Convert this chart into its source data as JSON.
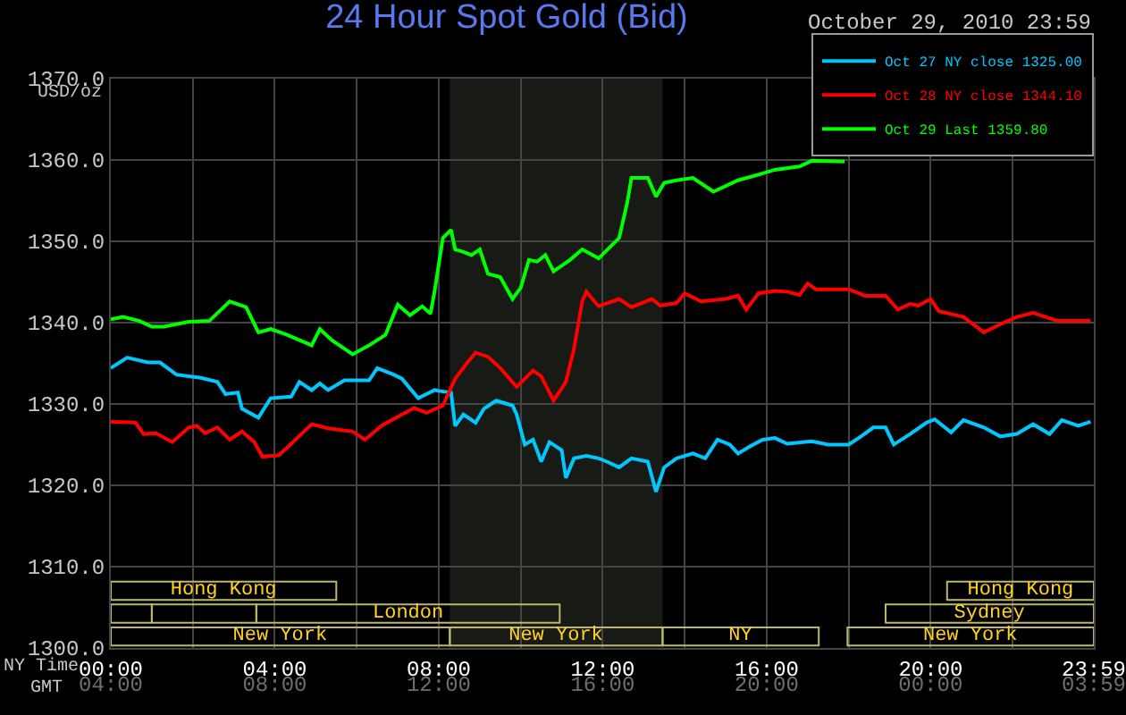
{
  "chart_data": [
    {
      "type": "line",
      "title": "24 Hour Spot Gold (Bid)",
      "subtitle": "October 29, 2010 23:59",
      "ylabel": "USD/oz",
      "xlabel": "NY Time",
      "x2label": "GMT",
      "series": [
        {
          "name": "Oct 27 NY close 1325.00",
          "color": "#00c8ff",
          "x": [
            0,
            0.4,
            0.9,
            1.2,
            1.6,
            2.2,
            2.6,
            2.8,
            3.1,
            3.2,
            3.6,
            3.9,
            4.4,
            4.6,
            4.9,
            5.1,
            5.3,
            5.7,
            6.3,
            6.5,
            6.9,
            7.1,
            7.5,
            7.9,
            8.0,
            8.3,
            8.4,
            8.6,
            8.9,
            9.1,
            9.4,
            9.8,
            9.9,
            10.1,
            10.3,
            10.5,
            10.7,
            11.0,
            11.1,
            11.3,
            11.6,
            11.9,
            12.1,
            12.4,
            12.7,
            13.1,
            13.3,
            13.5,
            13.8,
            14.2,
            14.5,
            14.8,
            15.1,
            15.3,
            15.6,
            15.9,
            16.2,
            16.5,
            17.1,
            17.5,
            18.0,
            18.3,
            18.6,
            18.9,
            19.1,
            19.5,
            19.9,
            20.1,
            20.5,
            20.8,
            21.3,
            21.7,
            22.1,
            22.5,
            22.9,
            23.2,
            23.6,
            23.9
          ],
          "values": [
            1334.4,
            1335.7,
            1335.1,
            1335.1,
            1333.6,
            1333.2,
            1332.7,
            1331.2,
            1331.4,
            1329.4,
            1328.3,
            1330.7,
            1330.9,
            1332.7,
            1331.7,
            1332.5,
            1331.7,
            1332.9,
            1332.9,
            1334.4,
            1333.6,
            1333.1,
            1330.7,
            1331.7,
            1331.6,
            1331.4,
            1327.3,
            1328.7,
            1327.7,
            1329.4,
            1330.4,
            1329.8,
            1328.7,
            1325.0,
            1325.6,
            1322.9,
            1325.3,
            1324.3,
            1320.9,
            1323.3,
            1323.6,
            1323.3,
            1322.9,
            1322.2,
            1323.3,
            1322.9,
            1319.2,
            1322.2,
            1323.3,
            1323.9,
            1323.3,
            1325.6,
            1325.0,
            1323.9,
            1324.8,
            1325.6,
            1325.8,
            1325.1,
            1325.4,
            1325.0,
            1325.0,
            1326.0,
            1327.1,
            1327.1,
            1325.0,
            1326.3,
            1327.7,
            1328.1,
            1326.5,
            1328.0,
            1327.1,
            1326.0,
            1326.3,
            1327.5,
            1326.3,
            1328.0,
            1327.3,
            1327.8
          ]
        },
        {
          "name": "Oct 28 NY close 1344.10",
          "color": "#ff0000",
          "x": [
            0,
            0.6,
            0.8,
            1.1,
            1.5,
            1.9,
            2.1,
            2.3,
            2.6,
            2.9,
            3.2,
            3.5,
            3.7,
            4.1,
            4.4,
            4.9,
            5.3,
            5.9,
            6.2,
            6.6,
            7.1,
            7.4,
            7.7,
            8.1,
            8.4,
            8.7,
            8.9,
            9.2,
            9.5,
            9.9,
            10.3,
            10.5,
            10.8,
            11.1,
            11.3,
            11.5,
            11.6,
            11.9,
            12.4,
            12.7,
            13.2,
            13.4,
            13.8,
            14.0,
            14.4,
            15.0,
            15.3,
            15.5,
            15.8,
            16.2,
            16.5,
            16.8,
            17.0,
            17.2,
            18.0,
            18.4,
            18.9,
            19.2,
            19.5,
            19.7,
            20.0,
            20.2,
            20.8,
            21.3,
            21.7,
            22.1,
            22.5,
            23.1,
            23.9
          ],
          "values": [
            1327.8,
            1327.7,
            1326.3,
            1326.4,
            1325.3,
            1327.1,
            1327.3,
            1326.4,
            1327.1,
            1325.6,
            1326.6,
            1325.3,
            1323.5,
            1323.7,
            1325.1,
            1327.5,
            1327.0,
            1326.6,
            1325.6,
            1327.3,
            1328.7,
            1329.5,
            1328.9,
            1329.8,
            1333.1,
            1335.1,
            1336.3,
            1335.8,
            1334.4,
            1332.1,
            1334.1,
            1333.4,
            1330.4,
            1332.7,
            1336.8,
            1342.6,
            1343.8,
            1342.0,
            1342.9,
            1341.9,
            1342.9,
            1342.1,
            1342.4,
            1343.6,
            1342.6,
            1342.9,
            1343.3,
            1341.6,
            1343.6,
            1343.9,
            1343.8,
            1343.4,
            1344.8,
            1344.1,
            1344.1,
            1343.3,
            1343.3,
            1341.6,
            1342.3,
            1342.1,
            1342.9,
            1341.4,
            1340.7,
            1338.8,
            1339.8,
            1340.7,
            1341.2,
            1340.2,
            1340.2
          ]
        },
        {
          "name": "Oct 29 Last 1359.80",
          "color": "#00ff00",
          "x": [
            0,
            0.3,
            0.7,
            1.0,
            1.3,
            1.9,
            2.4,
            2.9,
            3.3,
            3.6,
            3.9,
            4.3,
            4.9,
            5.1,
            5.4,
            5.9,
            6.3,
            6.7,
            7.0,
            7.3,
            7.6,
            7.8,
            7.9,
            8.1,
            8.3,
            8.4,
            8.6,
            8.8,
            9.0,
            9.2,
            9.5,
            9.8,
            10.0,
            10.2,
            10.4,
            10.6,
            10.8,
            11.2,
            11.5,
            11.9,
            12.2,
            12.4,
            12.6,
            12.7,
            13.1,
            13.3,
            13.5,
            13.8,
            14.2,
            14.7,
            15.3,
            15.8,
            16.2,
            16.8,
            17.1,
            17.9
          ],
          "values": [
            1340.4,
            1340.7,
            1340.2,
            1339.5,
            1339.5,
            1340.1,
            1340.2,
            1342.6,
            1341.9,
            1338.8,
            1339.2,
            1338.5,
            1337.2,
            1339.2,
            1337.8,
            1336.1,
            1337.2,
            1338.5,
            1342.2,
            1340.9,
            1342.0,
            1341.1,
            1343.9,
            1350.4,
            1351.4,
            1349.0,
            1348.7,
            1348.3,
            1349.0,
            1346.0,
            1345.6,
            1342.9,
            1344.3,
            1347.7,
            1347.5,
            1348.3,
            1346.3,
            1347.7,
            1349.0,
            1347.9,
            1349.4,
            1350.4,
            1354.8,
            1357.8,
            1357.8,
            1355.5,
            1357.2,
            1357.5,
            1357.8,
            1356.1,
            1357.5,
            1358.2,
            1358.8,
            1359.2,
            1359.9,
            1359.8
          ]
        }
      ],
      "xlim": [
        0,
        23.98
      ],
      "xticks": [
        {
          "value": 0,
          "label": "00:00"
        },
        {
          "value": 2,
          "label": null
        },
        {
          "value": 4,
          "label": "04:00"
        },
        {
          "value": 6,
          "label": null
        },
        {
          "value": 8,
          "label": "08:00"
        },
        {
          "value": 10,
          "label": null
        },
        {
          "value": 12,
          "label": "12:00"
        },
        {
          "value": 14,
          "label": null
        },
        {
          "value": 16,
          "label": "16:00"
        },
        {
          "value": 18,
          "label": null
        },
        {
          "value": 20,
          "label": "20:00"
        },
        {
          "value": 22,
          "label": null
        },
        {
          "value": 23.98,
          "label": "23:59"
        }
      ],
      "x2lim": [
        "2010-10-29T04:00",
        "2010-10-30T03:59"
      ],
      "x2ticks": [
        {
          "value": "2010-10-29T04:00",
          "label": "04:00"
        },
        {
          "value": "2010-10-29T08:00",
          "label": "08:00"
        },
        {
          "value": "2010-10-29T12:00",
          "label": "12:00"
        },
        {
          "value": "2010-10-29T16:00",
          "label": "16:00"
        },
        {
          "value": "2010-10-29T20:00",
          "label": "20:00"
        },
        {
          "value": "2010-10-30T00:00",
          "label": "00:00"
        },
        {
          "value": "2010-10-30T03:59",
          "label": "03:59"
        }
      ],
      "ylim": [
        1300,
        1370
      ],
      "yticks": [
        {
          "value": 1300,
          "label": "1300.0"
        },
        {
          "value": 1310,
          "label": "1310.0"
        },
        {
          "value": 1320,
          "label": "1320.0"
        },
        {
          "value": 1330,
          "label": "1330.0"
        },
        {
          "value": 1340,
          "label": "1340.0"
        },
        {
          "value": 1350,
          "label": "1350.0"
        },
        {
          "value": 1360,
          "label": "1360.0"
        },
        {
          "value": 1370,
          "label": "1370.0"
        }
      ],
      "bands": [
        {
          "axis": "x",
          "from": 8.27,
          "to": 13.46,
          "color": "#181a16"
        }
      ],
      "grid": true,
      "legend": "top right",
      "marker": "none",
      "line_style": "solid"
    },
    {
      "type": "bar",
      "orientation": "horizontal",
      "categories": [
        null
      ],
      "xlim": [
        0,
        23.98
      ],
      "series": [
        {
          "color": "#bdb76b",
          "base": [
            0
          ],
          "values": [
            5.5
          ],
          "value_labels": [
            "Hong Kong"
          ]
        },
        {
          "color": "#bdb76b",
          "base": [
            20.4
          ],
          "values": [
            3.58
          ],
          "value_labels": [
            "Hong Kong"
          ]
        }
      ]
    },
    {
      "type": "bar",
      "orientation": "horizontal",
      "categories": [
        null
      ],
      "xlim": [
        0,
        23.98
      ],
      "series": [
        {
          "color": "#bdb76b",
          "base": [
            0
          ],
          "values": [
            1.0
          ],
          "value_labels": [
            null
          ]
        },
        {
          "color": "#bdb76b",
          "base": [
            1.0
          ],
          "values": [
            2.55
          ],
          "value_labels": [
            null
          ]
        },
        {
          "color": "#bdb76b",
          "base": [
            3.55
          ],
          "values": [
            7.4
          ],
          "value_labels": [
            "London"
          ]
        },
        {
          "color": "#bdb76b",
          "base": [
            18.9
          ],
          "values": [
            5.08
          ],
          "value_labels": [
            "Sydney"
          ]
        }
      ]
    },
    {
      "type": "bar",
      "orientation": "horizontal",
      "categories": [
        null
      ],
      "xlim": [
        0,
        23.98
      ],
      "series": [
        {
          "color": "#bdb76b",
          "base": [
            0
          ],
          "values": [
            8.27
          ],
          "value_labels": [
            "New York"
          ]
        },
        {
          "color": "#bdb76b",
          "base": [
            8.27
          ],
          "values": [
            5.19
          ],
          "value_labels": [
            "New York"
          ]
        },
        {
          "color": "#bdb76b",
          "base": [
            13.46
          ],
          "values": [
            3.81
          ],
          "value_labels": [
            "NY"
          ]
        },
        {
          "color": "#bdb76b",
          "base": [
            17.97
          ],
          "values": [
            6.01
          ],
          "value_labels": [
            "New York"
          ]
        }
      ]
    }
  ]
}
